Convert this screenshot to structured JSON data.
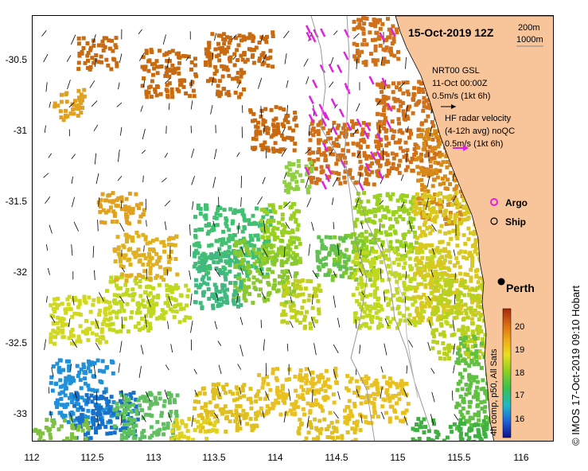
{
  "title": "15-Oct-2019 12Z",
  "scale": {
    "top": "200m",
    "bottom": "1000m"
  },
  "nrt": {
    "line1": "NRT00 GSL",
    "line2": "11-Oct 00:00Z",
    "line3": "0.5m/s (1kt 6h)"
  },
  "hf": {
    "line1": "HF radar velocity",
    "line2": "(4-12h avg) noQC",
    "line3": "0.5m/s (1kt 6h)"
  },
  "legend": {
    "argo": "Argo",
    "ship": "Ship"
  },
  "city": "Perth",
  "colorbar": {
    "label": "4h comp, p50, All Sats",
    "ticks": [
      "20",
      "19",
      "18",
      "17",
      "16"
    ]
  },
  "credit": "© IMOS 17-Oct-2019 09:10 Hobart",
  "x_ticks": [
    "112",
    "112.5",
    "113",
    "113.5",
    "114",
    "114.5",
    "115",
    "115.5",
    "116"
  ],
  "y_ticks": [
    "-30.5",
    "-31",
    "-31.5",
    "-32",
    "-32.5",
    "-33"
  ],
  "colors": {
    "land": "#f8c49a",
    "argo": "#e020e0",
    "hf_arrow": "#e020e0"
  }
}
